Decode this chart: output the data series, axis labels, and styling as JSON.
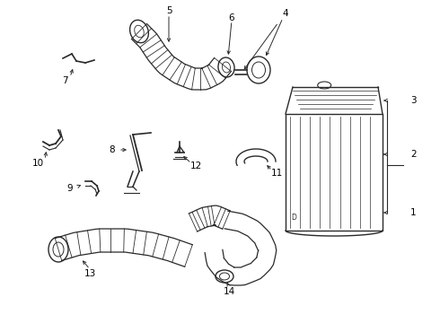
{
  "bg_color": "#ffffff",
  "line_color": "#2a2a2a",
  "label_color": "#000000",
  "figsize": [
    4.9,
    3.6
  ],
  "dpi": 100,
  "xlim": [
    0,
    490
  ],
  "ylim": [
    0,
    360
  ]
}
